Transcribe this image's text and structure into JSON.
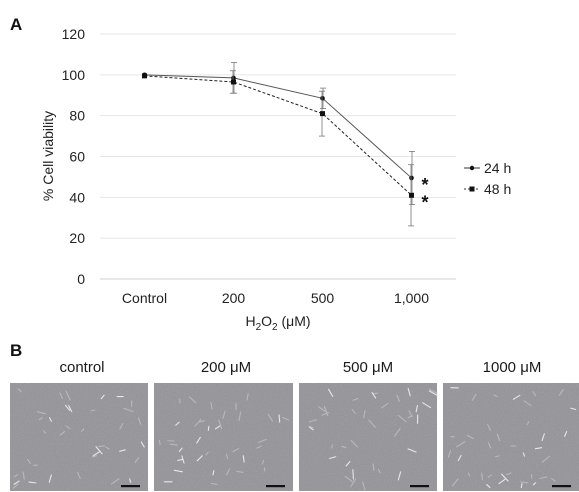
{
  "panel_a_label": "A",
  "panel_b_label": "B",
  "chart_data": {
    "type": "line",
    "categories": [
      "Control",
      "200",
      "500",
      "1,000"
    ],
    "series": [
      {
        "name": "24 h",
        "values": [
          100,
          98.5,
          88.5,
          49.5
        ],
        "errors": [
          0,
          7.5,
          5.0,
          13.0
        ],
        "line_style": "solid",
        "marker": "dot"
      },
      {
        "name": "48 h",
        "values": [
          99.5,
          96.5,
          81.0,
          41.0
        ],
        "errors": [
          0,
          5.5,
          11.0,
          15.0
        ],
        "line_style": "dashed",
        "marker": "square"
      }
    ],
    "significance": [
      "*",
      "*"
    ],
    "ylabel": "% Cell viability",
    "xlabel_main": "H",
    "xlabel_sub": "2",
    "xlabel_main2": "O",
    "xlabel_sub2": "2",
    "xlabel_unit": " (μM)",
    "ylim": [
      0,
      120
    ],
    "yticks": [
      0,
      20,
      40,
      60,
      80,
      100,
      120
    ],
    "grid": true,
    "legend_position": "right"
  },
  "micrographs": [
    {
      "label": "control"
    },
    {
      "label": "200 μM"
    },
    {
      "label": "500 μM"
    },
    {
      "label": "1000 μM"
    }
  ],
  "colors": {
    "ink": "#111111",
    "grid": "#e6e6e6",
    "micro_bg": "#8e8e93"
  }
}
